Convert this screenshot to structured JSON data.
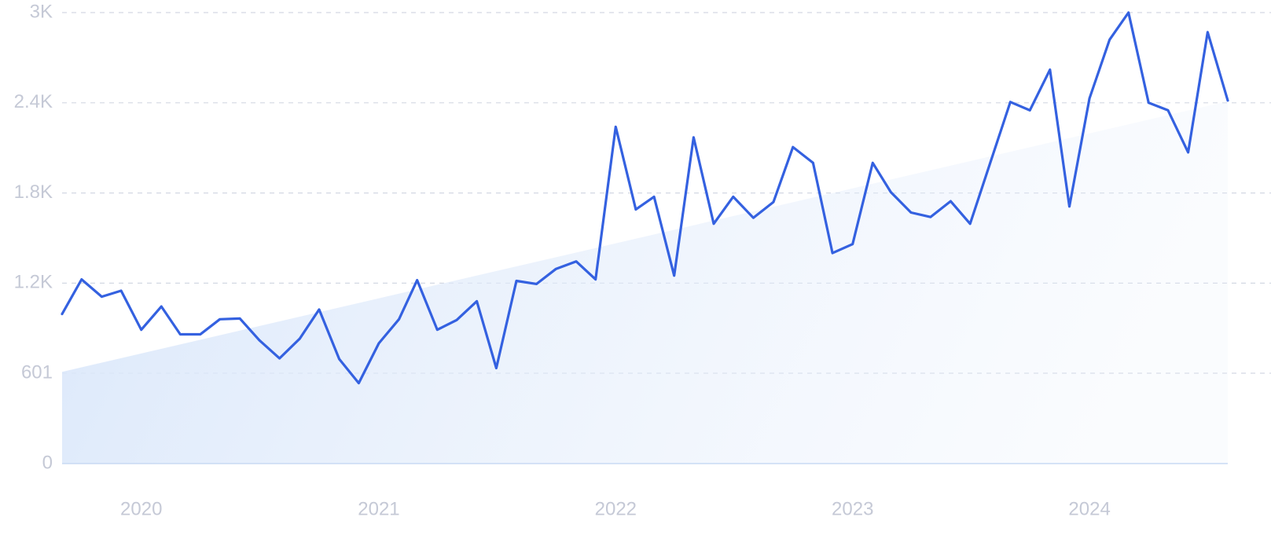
{
  "chart_data": {
    "type": "line",
    "title": "",
    "xlabel": "",
    "ylabel": "",
    "ylim": [
      0,
      3000
    ],
    "y_ticks": [
      {
        "value": 0,
        "label": "0"
      },
      {
        "value": 601,
        "label": "601"
      },
      {
        "value": 1200,
        "label": "1.2K"
      },
      {
        "value": 1800,
        "label": "1.8K"
      },
      {
        "value": 2400,
        "label": "2.4K"
      },
      {
        "value": 3000,
        "label": "3K"
      }
    ],
    "x_ticks": [
      {
        "value": "2020-01",
        "label": "2020"
      },
      {
        "value": "2021-01",
        "label": "2021"
      },
      {
        "value": "2022-01",
        "label": "2022"
      },
      {
        "value": "2023-01",
        "label": "2023"
      },
      {
        "value": "2024-01",
        "label": "2024"
      }
    ],
    "grid": true,
    "series": [
      {
        "role": "data",
        "color": "#3461e0",
        "x": [
          "2019-09",
          "2019-10",
          "2019-11",
          "2019-12",
          "2020-01",
          "2020-02",
          "2020-03",
          "2020-04",
          "2020-05",
          "2020-06",
          "2020-07",
          "2020-08",
          "2020-09",
          "2020-10",
          "2020-11",
          "2020-12",
          "2021-01",
          "2021-02",
          "2021-03",
          "2021-04",
          "2021-05",
          "2021-06",
          "2021-07",
          "2021-08",
          "2021-09",
          "2021-10",
          "2021-11",
          "2021-12",
          "2022-01",
          "2022-02",
          "2022-03",
          "2022-04",
          "2022-05",
          "2022-06",
          "2022-07",
          "2022-08",
          "2022-09",
          "2022-10",
          "2022-11",
          "2022-12",
          "2023-01",
          "2023-02",
          "2023-03",
          "2023-04",
          "2023-05",
          "2023-06",
          "2023-07",
          "2023-08",
          "2023-09",
          "2023-10",
          "2023-11",
          "2023-12",
          "2024-01",
          "2024-02",
          "2024-03",
          "2024-04",
          "2024-05",
          "2024-06",
          "2024-07",
          "2024-08"
        ],
        "values": [
          995,
          1225,
          1110,
          1150,
          890,
          1045,
          860,
          860,
          960,
          965,
          820,
          700,
          830,
          1025,
          695,
          535,
          800,
          960,
          1220,
          890,
          955,
          1080,
          635,
          1215,
          1195,
          1295,
          1345,
          1225,
          2240,
          1690,
          1775,
          1250,
          2170,
          1595,
          1775,
          1635,
          1740,
          2105,
          2000,
          1400,
          1460,
          2000,
          1805,
          1670,
          1640,
          1745,
          1595,
          2000,
          2405,
          2350,
          2620,
          1710,
          2430,
          2820,
          3000,
          2400,
          2350,
          2070,
          2870,
          2415
        ]
      },
      {
        "role": "trend",
        "color": "#dbe8fb",
        "x": [
          "2019-09",
          "2024-08"
        ],
        "values": [
          610,
          2410
        ]
      }
    ]
  }
}
